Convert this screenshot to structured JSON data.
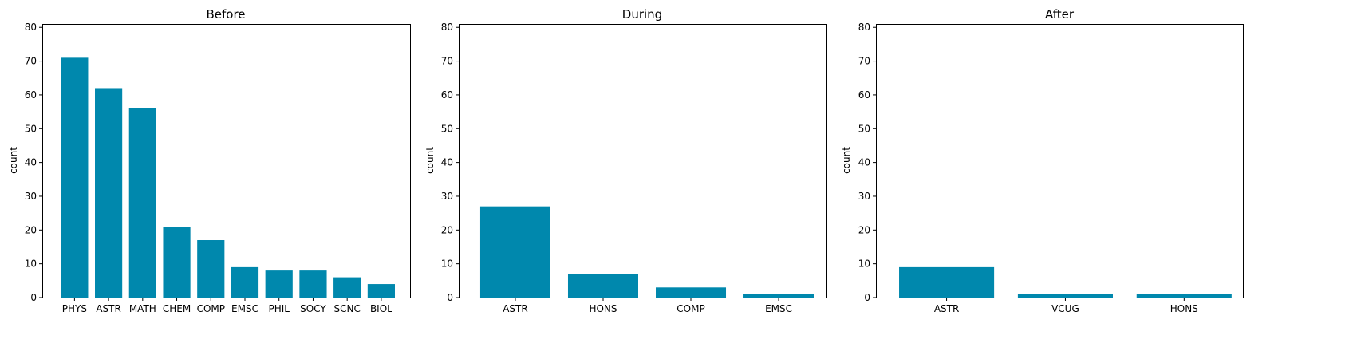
{
  "chart_data": [
    {
      "type": "bar",
      "title": "Before",
      "xlabel": "",
      "ylabel": "count",
      "ylim": [
        0,
        81
      ],
      "yticks": [
        0,
        10,
        20,
        30,
        40,
        50,
        60,
        70,
        80
      ],
      "categories": [
        "PHYS",
        "ASTR",
        "MATH",
        "CHEM",
        "COMP",
        "EMSC",
        "PHIL",
        "SOCY",
        "SCNC",
        "BIOL"
      ],
      "values": [
        71,
        62,
        56,
        21,
        17,
        9,
        8,
        8,
        6,
        4
      ],
      "color": "#0088ad",
      "grid": false
    },
    {
      "type": "bar",
      "title": "During",
      "xlabel": "",
      "ylabel": "count",
      "ylim": [
        0,
        81
      ],
      "yticks": [
        0,
        10,
        20,
        30,
        40,
        50,
        60,
        70,
        80
      ],
      "categories": [
        "ASTR",
        "HONS",
        "COMP",
        "EMSC"
      ],
      "values": [
        27,
        7,
        3,
        1
      ],
      "color": "#0088ad",
      "grid": false
    },
    {
      "type": "bar",
      "title": "After",
      "xlabel": "",
      "ylabel": "count",
      "ylim": [
        0,
        81
      ],
      "yticks": [
        0,
        10,
        20,
        30,
        40,
        50,
        60,
        70,
        80
      ],
      "categories": [
        "ASTR",
        "VCUG",
        "HONS"
      ],
      "values": [
        9,
        1,
        1
      ],
      "color": "#0088ad",
      "grid": false
    }
  ]
}
